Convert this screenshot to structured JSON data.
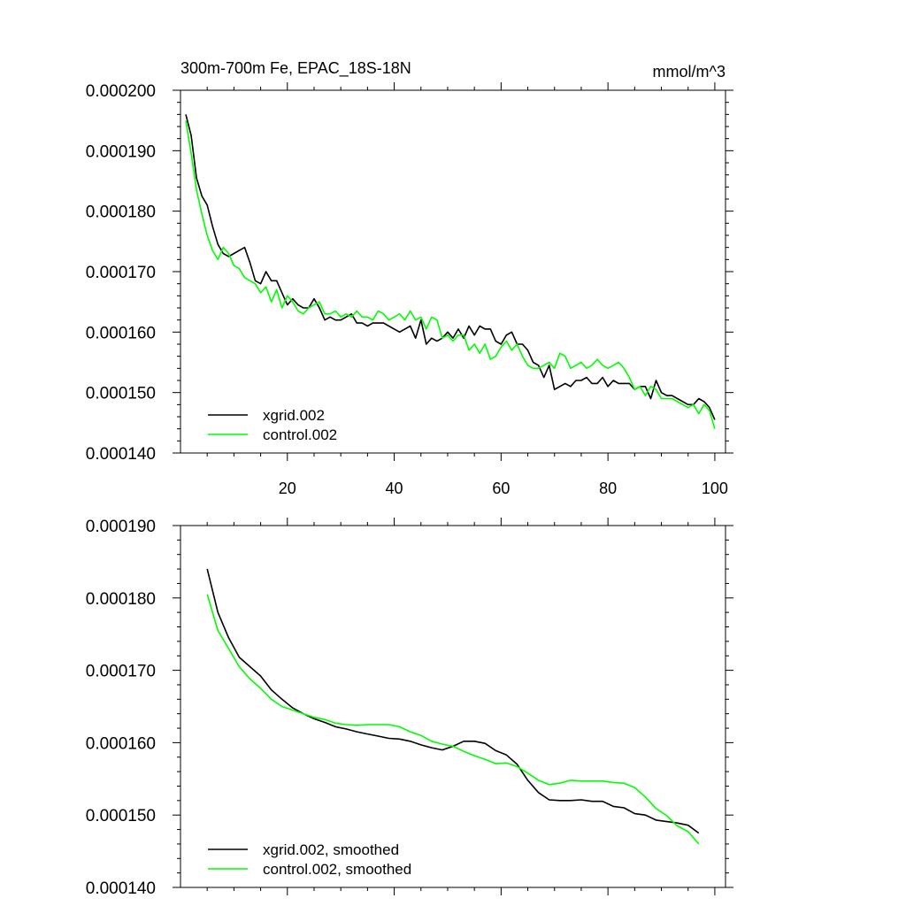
{
  "figure": {
    "title_left": "300m-700m Fe, EPAC_18S-18N",
    "title_right": "mmol/m^3"
  },
  "chart_data": [
    {
      "type": "line",
      "title": "300m-700m Fe, EPAC_18S-18N",
      "units": "mmol/m^3",
      "xlim": [
        0,
        102
      ],
      "ylim": [
        0.00014,
        0.0002
      ],
      "xticks": [
        20,
        40,
        60,
        80,
        100
      ],
      "xtick_labels": [
        "20",
        "40",
        "60",
        "80",
        "100"
      ],
      "yticks": [
        0.00014,
        0.00015,
        0.00016,
        0.00017,
        0.00018,
        0.00019,
        0.0002
      ],
      "ytick_labels": [
        "0.000140",
        "0.000150",
        "0.000160",
        "0.000170",
        "0.000180",
        "0.000190",
        "0.000200"
      ],
      "legend_position": "bottom-left",
      "series": [
        {
          "name": "xgrid.002",
          "color": "#000000",
          "x": [
            1,
            2,
            3,
            4,
            5,
            6,
            7,
            8,
            9,
            10,
            11,
            12,
            13,
            14,
            15,
            16,
            17,
            18,
            19,
            20,
            21,
            22,
            23,
            24,
            25,
            26,
            27,
            28,
            29,
            30,
            31,
            32,
            33,
            34,
            35,
            36,
            37,
            38,
            39,
            40,
            41,
            42,
            43,
            44,
            45,
            46,
            47,
            48,
            49,
            50,
            51,
            52,
            53,
            54,
            55,
            56,
            57,
            58,
            59,
            60,
            61,
            62,
            63,
            64,
            65,
            66,
            67,
            68,
            69,
            70,
            71,
            72,
            73,
            74,
            75,
            76,
            77,
            78,
            79,
            80,
            81,
            82,
            83,
            84,
            85,
            86,
            87,
            88,
            89,
            90,
            91,
            92,
            93,
            94,
            95,
            96,
            97,
            98,
            99,
            100
          ],
          "y": [
            0.000196,
            0.0001925,
            0.0001855,
            0.0001825,
            0.000181,
            0.0001775,
            0.0001745,
            0.000173,
            0.0001725,
            0.000173,
            0.0001735,
            0.000174,
            0.0001715,
            0.0001685,
            0.000168,
            0.00017,
            0.0001685,
            0.0001685,
            0.0001665,
            0.0001645,
            0.0001655,
            0.0001645,
            0.000164,
            0.000164,
            0.0001655,
            0.000164,
            0.000162,
            0.0001625,
            0.000162,
            0.000162,
            0.0001625,
            0.000163,
            0.0001615,
            0.0001615,
            0.000161,
            0.0001615,
            0.0001615,
            0.0001615,
            0.000161,
            0.0001605,
            0.00016,
            0.0001605,
            0.000161,
            0.000159,
            0.000162,
            0.000158,
            0.000159,
            0.0001585,
            0.000159,
            0.00016,
            0.000159,
            0.0001605,
            0.000159,
            0.000161,
            0.0001595,
            0.000161,
            0.0001605,
            0.0001605,
            0.0001585,
            0.000158,
            0.0001595,
            0.00016,
            0.000158,
            0.000158,
            0.000157,
            0.000155,
            0.0001545,
            0.0001525,
            0.0001545,
            0.0001505,
            0.000151,
            0.0001515,
            0.000151,
            0.000152,
            0.000152,
            0.0001525,
            0.0001515,
            0.0001515,
            0.0001525,
            0.000151,
            0.000152,
            0.0001515,
            0.0001515,
            0.0001515,
            0.0001505,
            0.000151,
            0.000151,
            0.000149,
            0.000152,
            0.00015,
            0.0001495,
            0.0001495,
            0.000149,
            0.0001485,
            0.000148,
            0.000148,
            0.000149,
            0.0001485,
            0.0001475,
            0.0001455
          ]
        },
        {
          "name": "control.002",
          "color": "#00ff00",
          "x": [
            1,
            2,
            3,
            4,
            5,
            6,
            7,
            8,
            9,
            10,
            11,
            12,
            13,
            14,
            15,
            16,
            17,
            18,
            19,
            20,
            21,
            22,
            23,
            24,
            25,
            26,
            27,
            28,
            29,
            30,
            31,
            32,
            33,
            34,
            35,
            36,
            37,
            38,
            39,
            40,
            41,
            42,
            43,
            44,
            45,
            46,
            47,
            48,
            49,
            50,
            51,
            52,
            53,
            54,
            55,
            56,
            57,
            58,
            59,
            60,
            61,
            62,
            63,
            64,
            65,
            66,
            67,
            68,
            69,
            70,
            71,
            72,
            73,
            74,
            75,
            76,
            77,
            78,
            79,
            80,
            81,
            82,
            83,
            84,
            85,
            86,
            87,
            88,
            89,
            90,
            91,
            92,
            93,
            94,
            95,
            96,
            97,
            98,
            99,
            100
          ],
          "y": [
            0.000195,
            0.0001895,
            0.0001835,
            0.0001795,
            0.000176,
            0.0001735,
            0.000172,
            0.000174,
            0.000173,
            0.000171,
            0.0001705,
            0.000169,
            0.0001685,
            0.000168,
            0.0001665,
            0.0001675,
            0.000165,
            0.000167,
            0.000164,
            0.000166,
            0.000165,
            0.0001635,
            0.000163,
            0.000164,
            0.0001645,
            0.000165,
            0.000163,
            0.000163,
            0.0001635,
            0.0001625,
            0.000163,
            0.0001625,
            0.0001635,
            0.0001625,
            0.0001625,
            0.000162,
            0.0001635,
            0.000163,
            0.000162,
            0.0001625,
            0.000163,
            0.000162,
            0.0001635,
            0.000162,
            0.0001625,
            0.0001605,
            0.0001625,
            0.000162,
            0.000159,
            0.0001595,
            0.0001585,
            0.0001595,
            0.0001595,
            0.000157,
            0.000158,
            0.0001565,
            0.000158,
            0.0001555,
            0.000156,
            0.0001575,
            0.0001585,
            0.000157,
            0.000158,
            0.000156,
            0.0001545,
            0.000154,
            0.000154,
            0.0001545,
            0.000155,
            0.000154,
            0.0001565,
            0.000156,
            0.000154,
            0.0001545,
            0.000155,
            0.000154,
            0.0001545,
            0.0001555,
            0.0001545,
            0.000154,
            0.0001545,
            0.000155,
            0.000154,
            0.0001525,
            0.0001505,
            0.000151,
            0.0001495,
            0.000151,
            0.0001505,
            0.000149,
            0.000149,
            0.000149,
            0.0001485,
            0.000148,
            0.0001475,
            0.000148,
            0.0001465,
            0.000148,
            0.000147,
            0.000144
          ]
        }
      ]
    },
    {
      "type": "line",
      "xlim": [
        0,
        102
      ],
      "ylim": [
        0.00014,
        0.00019
      ],
      "xticks": [
        20,
        40,
        60,
        80,
        100
      ],
      "xtick_labels": [],
      "yticks": [
        0.00014,
        0.00015,
        0.00016,
        0.00017,
        0.00018,
        0.00019
      ],
      "ytick_labels": [
        "0.000140",
        "0.000150",
        "0.000160",
        "0.000170",
        "0.000180",
        "0.000190"
      ],
      "legend_position": "bottom-left",
      "series": [
        {
          "name": "xgrid.002, smoothed",
          "color": "#000000",
          "x": [
            5,
            7,
            9,
            11,
            13,
            15,
            17,
            19,
            21,
            23,
            25,
            27,
            29,
            31,
            33,
            35,
            37,
            39,
            41,
            43,
            45,
            47,
            49,
            51,
            53,
            55,
            57,
            59,
            61,
            63,
            65,
            67,
            69,
            71,
            73,
            75,
            77,
            79,
            81,
            83,
            85,
            87,
            89,
            91,
            93,
            95,
            97
          ],
          "y": [
            0.000184,
            0.000178,
            0.0001745,
            0.0001718,
            0.0001705,
            0.0001692,
            0.0001673,
            0.000166,
            0.0001648,
            0.000164,
            0.0001633,
            0.0001628,
            0.0001622,
            0.0001619,
            0.0001615,
            0.0001612,
            0.0001609,
            0.0001606,
            0.0001605,
            0.0001602,
            0.0001597,
            0.0001593,
            0.000159,
            0.0001595,
            0.0001602,
            0.0001602,
            0.0001599,
            0.0001589,
            0.0001583,
            0.000157,
            0.0001548,
            0.0001531,
            0.0001521,
            0.000152,
            0.000152,
            0.0001521,
            0.0001519,
            0.0001519,
            0.0001512,
            0.000151,
            0.0001502,
            0.00015,
            0.0001493,
            0.0001491,
            0.0001489,
            0.0001486,
            0.0001475
          ]
        },
        {
          "name": "control.002, smoothed",
          "color": "#00ff00",
          "x": [
            5,
            7,
            9,
            11,
            13,
            15,
            17,
            19,
            21,
            23,
            25,
            27,
            29,
            31,
            33,
            35,
            37,
            39,
            41,
            43,
            45,
            47,
            49,
            51,
            53,
            55,
            57,
            59,
            61,
            63,
            65,
            67,
            69,
            71,
            73,
            75,
            77,
            79,
            81,
            83,
            85,
            87,
            89,
            91,
            93,
            95,
            97
          ],
          "y": [
            0.0001805,
            0.0001755,
            0.000173,
            0.0001705,
            0.0001688,
            0.0001675,
            0.000166,
            0.000165,
            0.0001645,
            0.000164,
            0.0001635,
            0.0001632,
            0.0001627,
            0.0001625,
            0.0001624,
            0.0001625,
            0.0001625,
            0.0001625,
            0.0001622,
            0.0001615,
            0.000161,
            0.0001602,
            0.0001598,
            0.0001595,
            0.0001588,
            0.0001582,
            0.0001577,
            0.0001571,
            0.0001572,
            0.0001567,
            0.0001558,
            0.0001548,
            0.0001542,
            0.0001544,
            0.0001548,
            0.0001547,
            0.0001547,
            0.0001547,
            0.0001545,
            0.0001544,
            0.0001538,
            0.0001525,
            0.0001509,
            0.0001499,
            0.0001485,
            0.0001477,
            0.000146
          ]
        }
      ]
    }
  ]
}
